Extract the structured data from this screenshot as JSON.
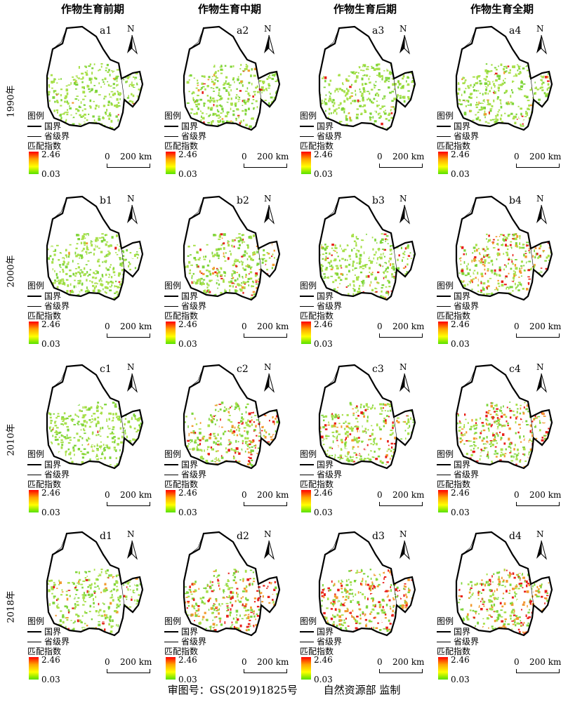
{
  "column_titles": [
    "作物生育前期",
    "作物生育中期",
    "作物生育后期",
    "作物生育全期"
  ],
  "row_titles": [
    "1990年",
    "2000年",
    "2010年",
    "2018年"
  ],
  "panel_ids": [
    [
      "a1",
      "a2",
      "a3",
      "a4"
    ],
    [
      "b1",
      "b2",
      "b3",
      "b4"
    ],
    [
      "c1",
      "c2",
      "c3",
      "c4"
    ],
    [
      "d1",
      "d2",
      "d3",
      "d4"
    ]
  ],
  "legend": {
    "title": "图例",
    "national_boundary": "国界",
    "provincial_boundary": "省级界",
    "index_title": "匹配指数",
    "max_value": "2.46",
    "min_value": "0.03"
  },
  "north_arrow_label": "N",
  "scale": {
    "zero": "0",
    "distance": "200 km"
  },
  "colors": {
    "high": "#ff0000",
    "mid": "#ffa500",
    "low": "#55e000",
    "boundary": "#000000"
  },
  "footer": {
    "review_number": "审图号：GS(2019)1825号",
    "supervisor": "自然资源部 监制"
  }
}
